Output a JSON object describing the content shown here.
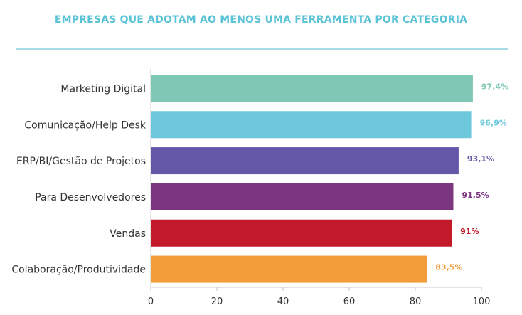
{
  "chart_data": {
    "type": "bar",
    "orientation": "horizontal",
    "title": "EMPRESAS QUE ADOTAM AO MENOS UMA FERRAMENTA POR CATEGORIA",
    "categories": [
      "Marketing Digital",
      "Comunicação/Help Desk",
      "ERP/BI/Gestão de Projetos",
      "Para Desenvolvedores",
      "Vendas",
      "Colaboração/Produtividade"
    ],
    "values": [
      97.4,
      96.9,
      93.1,
      91.5,
      91,
      83.5
    ],
    "value_labels": [
      "97,4%",
      "96,9%",
      "93,1%",
      "91,5%",
      "91%",
      "83,5%"
    ],
    "bar_colors": [
      "#7fc8b6",
      "#6ec8dc",
      "#6557a8",
      "#7b3680",
      "#c21a2a",
      "#f39c3a"
    ],
    "xlim": [
      0,
      100
    ],
    "xticks": [
      0,
      20,
      40,
      60,
      80,
      100
    ],
    "grid": false,
    "legend": "none"
  },
  "colors": {
    "title": "#5bc3d6",
    "rule": "#a8dde8",
    "axis": "#c8c8c8"
  }
}
